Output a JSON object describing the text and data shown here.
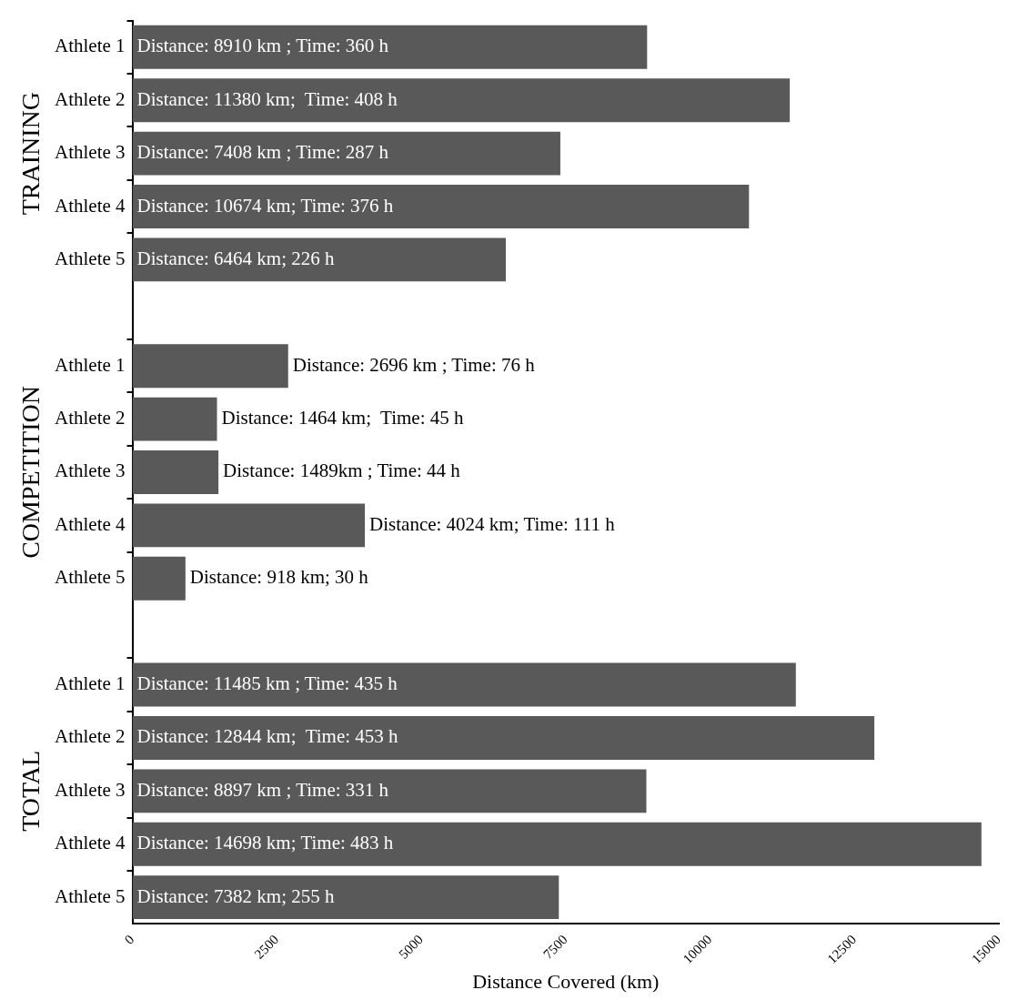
{
  "chart_data": {
    "type": "bar",
    "orientation": "horizontal",
    "xlabel": "Distance Covered (km)",
    "categories": [
      "Athlete 1",
      "Athlete 2",
      "Athlete 3",
      "Athlete 4",
      "Athlete 5",
      null,
      "Athlete 1",
      "Athlete 2",
      "Athlete 3",
      "Athlete 4",
      "Athlete 5",
      null,
      "Athlete 1",
      "Athlete 2",
      "Athlete 3",
      "Athlete 4",
      "Athlete 5"
    ],
    "values": [
      8910,
      11380,
      7408,
      10674,
      6464,
      null,
      2696,
      1464,
      1489,
      4024,
      918,
      null,
      11485,
      12844,
      8897,
      14698,
      7382
    ],
    "value_labels": [
      "Distance: 8910 km ; Time: 360 h",
      "Distance: 11380 km;  Time: 408 h",
      "Distance: 7408 km ; Time: 287 h",
      "Distance: 10674 km; Time: 376 h",
      "Distance: 6464 km; 226 h",
      null,
      "Distance: 2696 km ; Time: 76 h",
      "Distance: 1464 km;  Time: 45 h",
      "Distance: 1489km ; Time: 44 h",
      "Distance: 4024 km; Time: 111 h",
      "Distance: 918 km; 30 h",
      null,
      "Distance: 11485 km ; Time: 435 h",
      "Distance: 12844 km;  Time: 453 h",
      "Distance: 8897 km ; Time: 331 h",
      "Distance: 14698 km; Time: 483 h",
      "Distance: 7382 km; 255 h"
    ],
    "color": "#595959",
    "xlim": [
      0,
      15000
    ],
    "xticks": [
      0,
      2500,
      5000,
      7500,
      10000,
      12500,
      15000
    ],
    "annotations": [
      "TRAINING",
      "COMPETITION",
      "TOTAL"
    ],
    "grid": false,
    "legend": false
  }
}
